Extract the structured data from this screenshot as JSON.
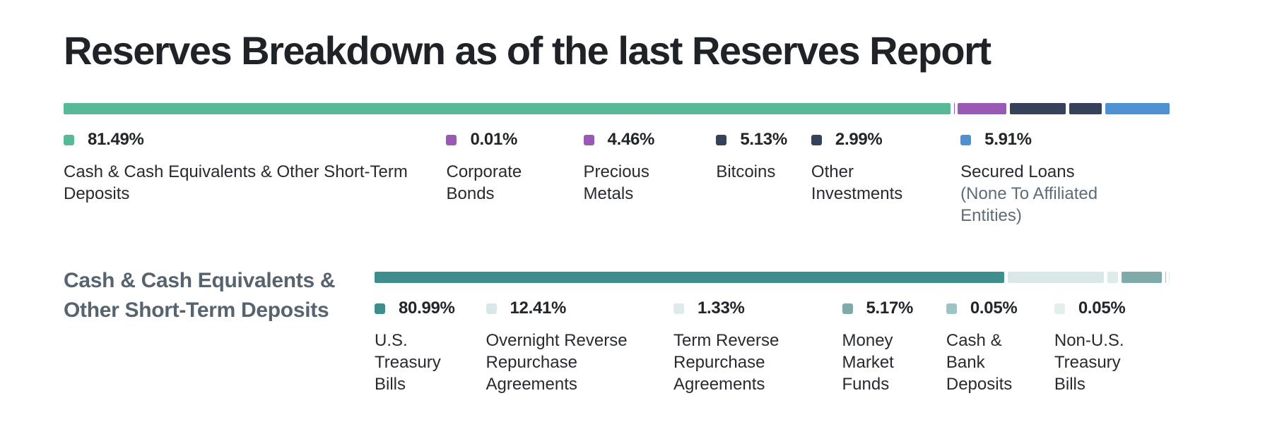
{
  "chart_data": [
    {
      "type": "bar",
      "variant": "horizontal-stacked",
      "title": "Reserves Breakdown as of the last Reserves Report",
      "unit": "percent",
      "total": 100,
      "legend_position": "below",
      "segments": [
        {
          "label": "Cash & Cash Equivalents & Other Short-Term Deposits",
          "value": 81.49,
          "display": "81.49%",
          "color": "#57B998"
        },
        {
          "label": "Corporate Bonds",
          "value": 0.01,
          "display": "0.01%",
          "color": "#9A59B5"
        },
        {
          "label": "Precious Metals",
          "value": 4.46,
          "display": "4.46%",
          "color": "#9A59B5"
        },
        {
          "label": "Bitcoins",
          "value": 5.13,
          "display": "5.13%",
          "color": "#36415A"
        },
        {
          "label": "Other Investments",
          "value": 2.99,
          "display": "2.99%",
          "color": "#36415A"
        },
        {
          "label": "Secured Loans",
          "sublabel": "(None To Affiliated Entities)",
          "value": 5.91,
          "display": "5.91%",
          "color": "#4E90D2"
        }
      ]
    },
    {
      "type": "bar",
      "variant": "horizontal-stacked",
      "title": "Cash & Cash Equivalents & Other Short-Term Deposits",
      "unit": "percent",
      "total": 100,
      "legend_position": "below",
      "segments": [
        {
          "label": "U.S. Treasury Bills",
          "value": 80.99,
          "display": "80.99%",
          "color": "#3E8E8E"
        },
        {
          "label": "Overnight Reverse Repurchase Agreements",
          "value": 12.41,
          "display": "12.41%",
          "color": "#D8E7E7"
        },
        {
          "label": "Term Reverse Repurchase Agreements",
          "value": 1.33,
          "display": "1.33%",
          "color": "#DDEBEA"
        },
        {
          "label": "Money Market Funds",
          "value": 5.17,
          "display": "5.17%",
          "color": "#7FAAAA"
        },
        {
          "label": "Cash & Bank Deposits",
          "value": 0.05,
          "display": "0.05%",
          "color": "#9CC4C4"
        },
        {
          "label": "Non-U.S. Treasury Bills",
          "value": 0.05,
          "display": "0.05%",
          "color": "#E3EFED"
        }
      ]
    }
  ]
}
